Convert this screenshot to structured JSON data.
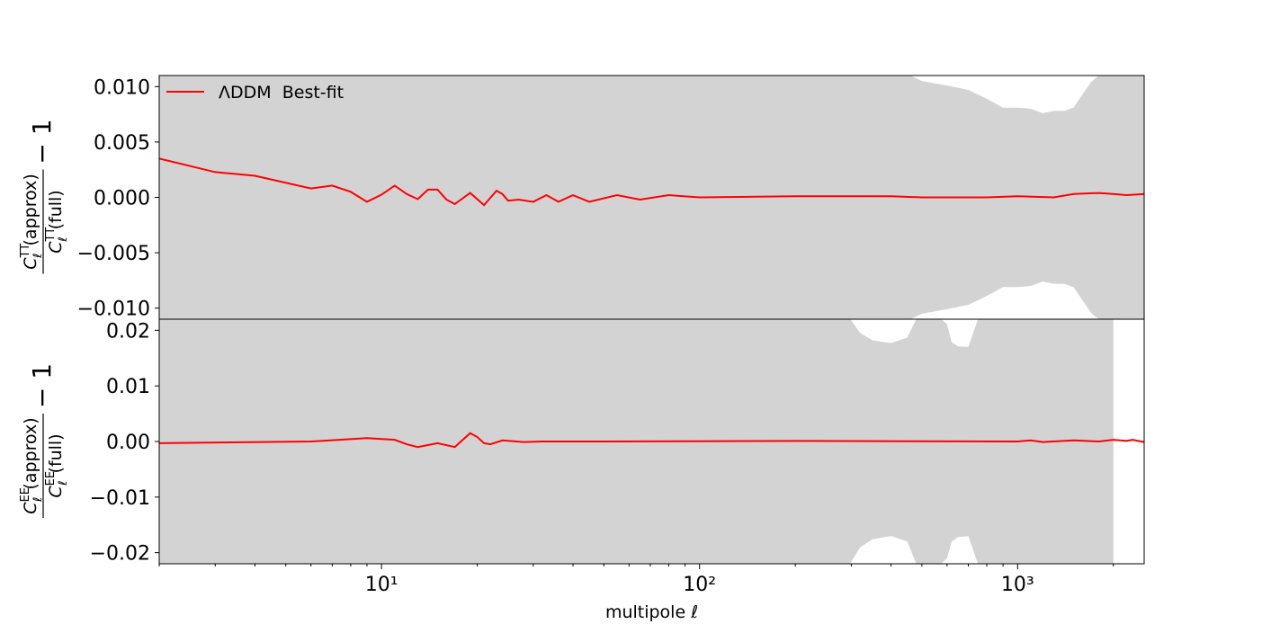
{
  "chart_data": [
    {
      "type": "line",
      "xlim": [
        2,
        2500
      ],
      "log_x": true,
      "xticks": [
        {
          "value": 10,
          "label": "10¹"
        },
        {
          "value": 100,
          "label": "10²"
        },
        {
          "value": 1000,
          "label": "10³"
        }
      ],
      "x_minor_ticks": [
        2,
        3,
        4,
        5,
        6,
        7,
        8,
        9,
        20,
        30,
        40,
        50,
        60,
        70,
        80,
        90,
        200,
        300,
        400,
        500,
        600,
        700,
        800,
        900,
        2000
      ],
      "ylim": [
        -0.011,
        0.011
      ],
      "yticks": [
        {
          "value": 0.01,
          "label": "0.010"
        },
        {
          "value": 0.005,
          "label": "0.005"
        },
        {
          "value": 0,
          "label": "0.000"
        },
        {
          "value": -0.005,
          "label": "−0.005"
        },
        {
          "value": -0.01,
          "label": "−0.010"
        }
      ],
      "ylabel": {
        "symbol": "C",
        "sub": "ℓ",
        "sup": "TT",
        "num": "(approx)",
        "den": "(full)",
        "tail": "− 1"
      },
      "legend": "upper left",
      "band": {
        "color": "#d3d3d3",
        "x": [
          2,
          460,
          500,
          600,
          700,
          800,
          900,
          1000,
          1100,
          1200,
          1300,
          1400,
          1500,
          1600,
          1700,
          1800,
          2500
        ],
        "upper": [
          0.012,
          0.011,
          0.0105,
          0.0101,
          0.0097,
          0.0089,
          0.0081,
          0.0081,
          0.008,
          0.0076,
          0.0078,
          0.0078,
          0.0081,
          0.0093,
          0.0104,
          0.011,
          0.012
        ],
        "lower": [
          -0.012,
          -0.011,
          -0.0105,
          -0.0101,
          -0.0097,
          -0.0089,
          -0.0081,
          -0.0081,
          -0.008,
          -0.0076,
          -0.0078,
          -0.0078,
          -0.0081,
          -0.0093,
          -0.0104,
          -0.011,
          -0.012
        ]
      },
      "series": [
        {
          "name": "ΛDDM  Best-fit",
          "color": "#ff0000",
          "x": [
            2,
            3,
            4,
            6,
            7,
            8,
            9,
            10,
            11,
            12,
            13,
            14,
            15,
            16,
            17,
            19,
            21,
            23,
            24,
            25,
            27,
            30,
            33,
            36,
            40,
            45,
            55,
            65,
            80,
            100,
            200,
            400,
            500,
            800,
            1000,
            1300,
            1500,
            1800,
            2000,
            2200,
            2500
          ],
          "values": [
            0.0035,
            0.00228,
            0.00195,
            0.0008,
            0.00106,
            0.0005,
            -0.0004,
            0.00024,
            0.00106,
            0.0003,
            -0.00016,
            0.0007,
            0.0007,
            -0.0002,
            -0.0006,
            0.0004,
            -0.0007,
            0.0006,
            0.0003,
            -0.0003,
            -0.0002,
            -0.0004,
            0.0002,
            -0.0004,
            0.0002,
            -0.0004,
            0.0002,
            -0.0002,
            0.0002,
            0,
            0.0001,
            0.0001,
            0,
            0,
            0.0001,
            0,
            0.0003,
            0.0004,
            0.0003,
            0.0002,
            0.0003
          ]
        }
      ]
    },
    {
      "type": "line",
      "xlim": [
        2,
        2500
      ],
      "log_x": true,
      "xticks": [
        {
          "value": 10,
          "label": "10¹"
        },
        {
          "value": 100,
          "label": "10²"
        },
        {
          "value": 1000,
          "label": "10³"
        }
      ],
      "x_minor_ticks": [
        2,
        3,
        4,
        5,
        6,
        7,
        8,
        9,
        20,
        30,
        40,
        50,
        60,
        70,
        80,
        90,
        200,
        300,
        400,
        500,
        600,
        700,
        800,
        900,
        2000
      ],
      "xlabel": "multipole ℓ",
      "ylim": [
        -0.022,
        0.022
      ],
      "yticks": [
        {
          "value": 0.02,
          "label": "0.02"
        },
        {
          "value": 0.01,
          "label": "0.01"
        },
        {
          "value": 0,
          "label": "0.00"
        },
        {
          "value": -0.01,
          "label": "−0.01"
        },
        {
          "value": -0.02,
          "label": "−0.02"
        }
      ],
      "ylabel": {
        "symbol": "C",
        "sub": "ℓ",
        "sup": "EE",
        "num": "(approx)",
        "den": "(full)",
        "tail": "− 1"
      },
      "band": {
        "color": "#d3d3d3",
        "x": [
          2,
          290,
          320,
          350,
          400,
          450,
          480,
          550,
          600,
          620,
          650,
          700,
          750,
          800,
          2000
        ],
        "upper": [
          0.023,
          0.023,
          0.0195,
          0.0182,
          0.0177,
          0.0187,
          0.022,
          0.023,
          0.0211,
          0.0179,
          0.0171,
          0.017,
          0.022,
          0.023,
          0.023
        ],
        "lower": [
          -0.023,
          -0.023,
          -0.019,
          -0.0176,
          -0.017,
          -0.018,
          -0.022,
          -0.023,
          -0.021,
          -0.018,
          -0.0172,
          -0.017,
          -0.022,
          -0.023,
          -0.023
        ]
      },
      "series": [
        {
          "color": "#ff0000",
          "x": [
            2,
            6,
            9,
            11,
            12,
            13,
            15,
            17,
            19,
            20,
            21,
            22,
            24,
            28,
            32,
            50,
            200,
            1000,
            1100,
            1200,
            1500,
            1800,
            2000,
            2200,
            2300,
            2500
          ],
          "values": [
            -0.0003,
            0,
            0.0006,
            0.0003,
            -0.0005,
            -0.001,
            -0.0003,
            -0.001,
            0.0015,
            0.0008,
            -0.0003,
            -0.0005,
            0.0002,
            -0.0001,
            0,
            0,
            0.0001,
            0,
            0.0002,
            -0.0001,
            0.0002,
            0,
            0.0003,
            0.0001,
            0.0003,
            -0.0001
          ]
        }
      ]
    }
  ]
}
